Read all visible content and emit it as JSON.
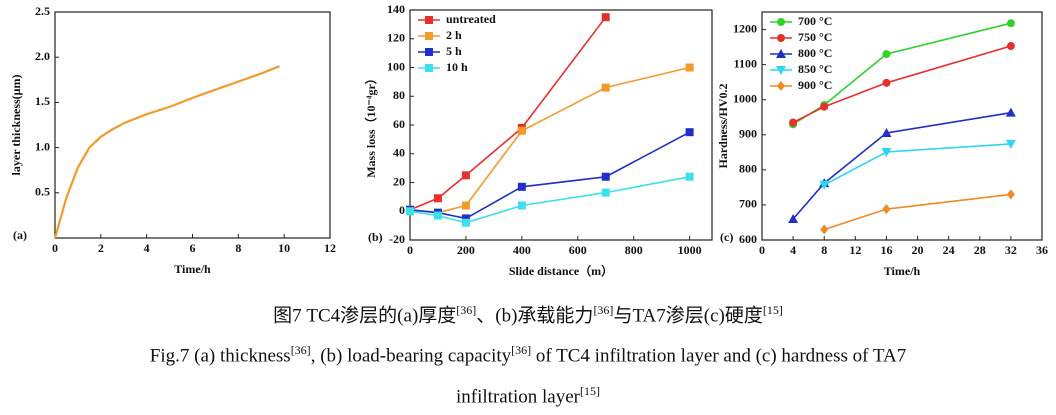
{
  "chart_data": [
    {
      "type": "line",
      "annotation": "(a)",
      "x_label": "Time/h",
      "y_label": "layer thickness(μm)",
      "color": "#f39a2b",
      "x": [
        0,
        0.5,
        1,
        1.5,
        2,
        2.5,
        3,
        4,
        5,
        6,
        7,
        8,
        9,
        9.8
      ],
      "values": [
        0,
        0.45,
        0.78,
        1.0,
        1.12,
        1.2,
        1.27,
        1.37,
        1.45,
        1.55,
        1.64,
        1.73,
        1.82,
        1.9
      ],
      "xlim": [
        0,
        12
      ],
      "xticks": [
        0,
        2,
        4,
        6,
        8,
        10,
        12
      ],
      "ylim": [
        0,
        2.5
      ],
      "yticks": [
        0.5,
        {
          "value": 1,
          "label": "1.0"
        },
        1.5,
        {
          "value": 2,
          "label": "2.0"
        },
        2.5
      ]
    },
    {
      "type": "line",
      "annotation": "(b)",
      "x_label": "Slide distance（m）",
      "y_label": "Mass loss（10⁻⁴gr）",
      "x": [
        0,
        100,
        200,
        400,
        700,
        1000
      ],
      "series": [
        {
          "name": "untreated",
          "color": "#e8302a",
          "marker": "square",
          "values": [
            1,
            9,
            25,
            58,
            135,
            null
          ]
        },
        {
          "name": "2 h",
          "color": "#f39a2b",
          "marker": "square",
          "values": [
            1,
            -1,
            4,
            56,
            86,
            100
          ]
        },
        {
          "name": "5 h",
          "color": "#1f2fc8",
          "marker": "square",
          "values": [
            1,
            -1,
            -5,
            17,
            24,
            55
          ]
        },
        {
          "name": "10 h",
          "color": "#3de0ea",
          "marker": "square",
          "values": [
            0,
            -3,
            -8,
            4,
            13,
            24
          ]
        }
      ],
      "xlim": [
        0,
        1080
      ],
      "xticks": [
        0,
        200,
        400,
        600,
        800,
        1000
      ],
      "ylim": [
        -20,
        140
      ],
      "yticks": [
        -20,
        0,
        20,
        40,
        60,
        80,
        100,
        120,
        140
      ]
    },
    {
      "type": "line",
      "annotation": "(c)",
      "x_label": "Time/h",
      "y_label": "Hardness/HV0.2",
      "x": [
        4,
        8,
        16,
        32
      ],
      "series": [
        {
          "name": "700 °C",
          "color": "#2fd12a",
          "marker": "circle",
          "values": [
            930,
            985,
            1130,
            1218
          ]
        },
        {
          "name": "750 °C",
          "color": "#e8302a",
          "marker": "circle",
          "values": [
            935,
            980,
            1048,
            1153
          ]
        },
        {
          "name": "800 °C",
          "color": "#1f2fc8",
          "marker": "triangle",
          "values": [
            660,
            762,
            905,
            963
          ]
        },
        {
          "name": "850 °C",
          "color": "#2fd7f0",
          "marker": "triangle-down",
          "values": [
            null,
            757,
            851,
            874
          ]
        },
        {
          "name": "900 °C",
          "color": "#f08a24",
          "marker": "diamond",
          "values": [
            null,
            630,
            688,
            730
          ]
        }
      ],
      "xlim": [
        0,
        36
      ],
      "xticks": [
        0,
        4,
        8,
        12,
        16,
        20,
        24,
        28,
        32,
        36
      ],
      "ylim": [
        600,
        1250
      ],
      "yticks": [
        600,
        700,
        800,
        900,
        1000,
        1100,
        1200
      ]
    }
  ],
  "caption": {
    "zh": [
      {
        "text": "图7 TC4渗层的(a)厚度"
      },
      {
        "text": "[36]",
        "sup": true
      },
      {
        "text": "、(b)承载能力"
      },
      {
        "text": "[36]",
        "sup": true
      },
      {
        "text": "与TA7渗层(c)硬度"
      },
      {
        "text": "[15]",
        "sup": true
      }
    ],
    "en1": [
      {
        "text": "Fig.7 (a) thickness"
      },
      {
        "text": "[36]",
        "sup": true
      },
      {
        "text": ", (b) load-bearing capacity"
      },
      {
        "text": "[36]",
        "sup": true
      },
      {
        "text": " of TC4 infiltration layer and (c) hardness of TA7"
      }
    ],
    "en2": [
      {
        "text": "infiltration layer"
      },
      {
        "text": "[15]",
        "sup": true
      }
    ]
  }
}
